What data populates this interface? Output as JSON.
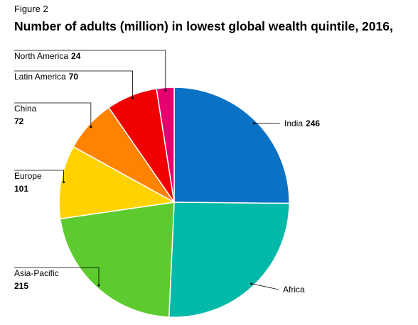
{
  "chart_data": {
    "type": "pie",
    "subtitle": "Figure 2",
    "title": "Number of adults (million) in lowest global wealth quintile, 2016,",
    "categories": [
      "India",
      "Africa",
      "Asia-Pacific",
      "Europe",
      "China",
      "Latin America",
      "North America"
    ],
    "values": [
      246,
      250,
      215,
      101,
      72,
      70,
      24
    ],
    "colors": [
      "#0a72c4",
      "#00b9a8",
      "#5dcb2f",
      "#ffd200",
      "#ff8200",
      "#f00000",
      "#e6006e"
    ],
    "value_labels": [
      "246",
      null,
      "215",
      "101",
      "72",
      "70",
      "24"
    ]
  }
}
